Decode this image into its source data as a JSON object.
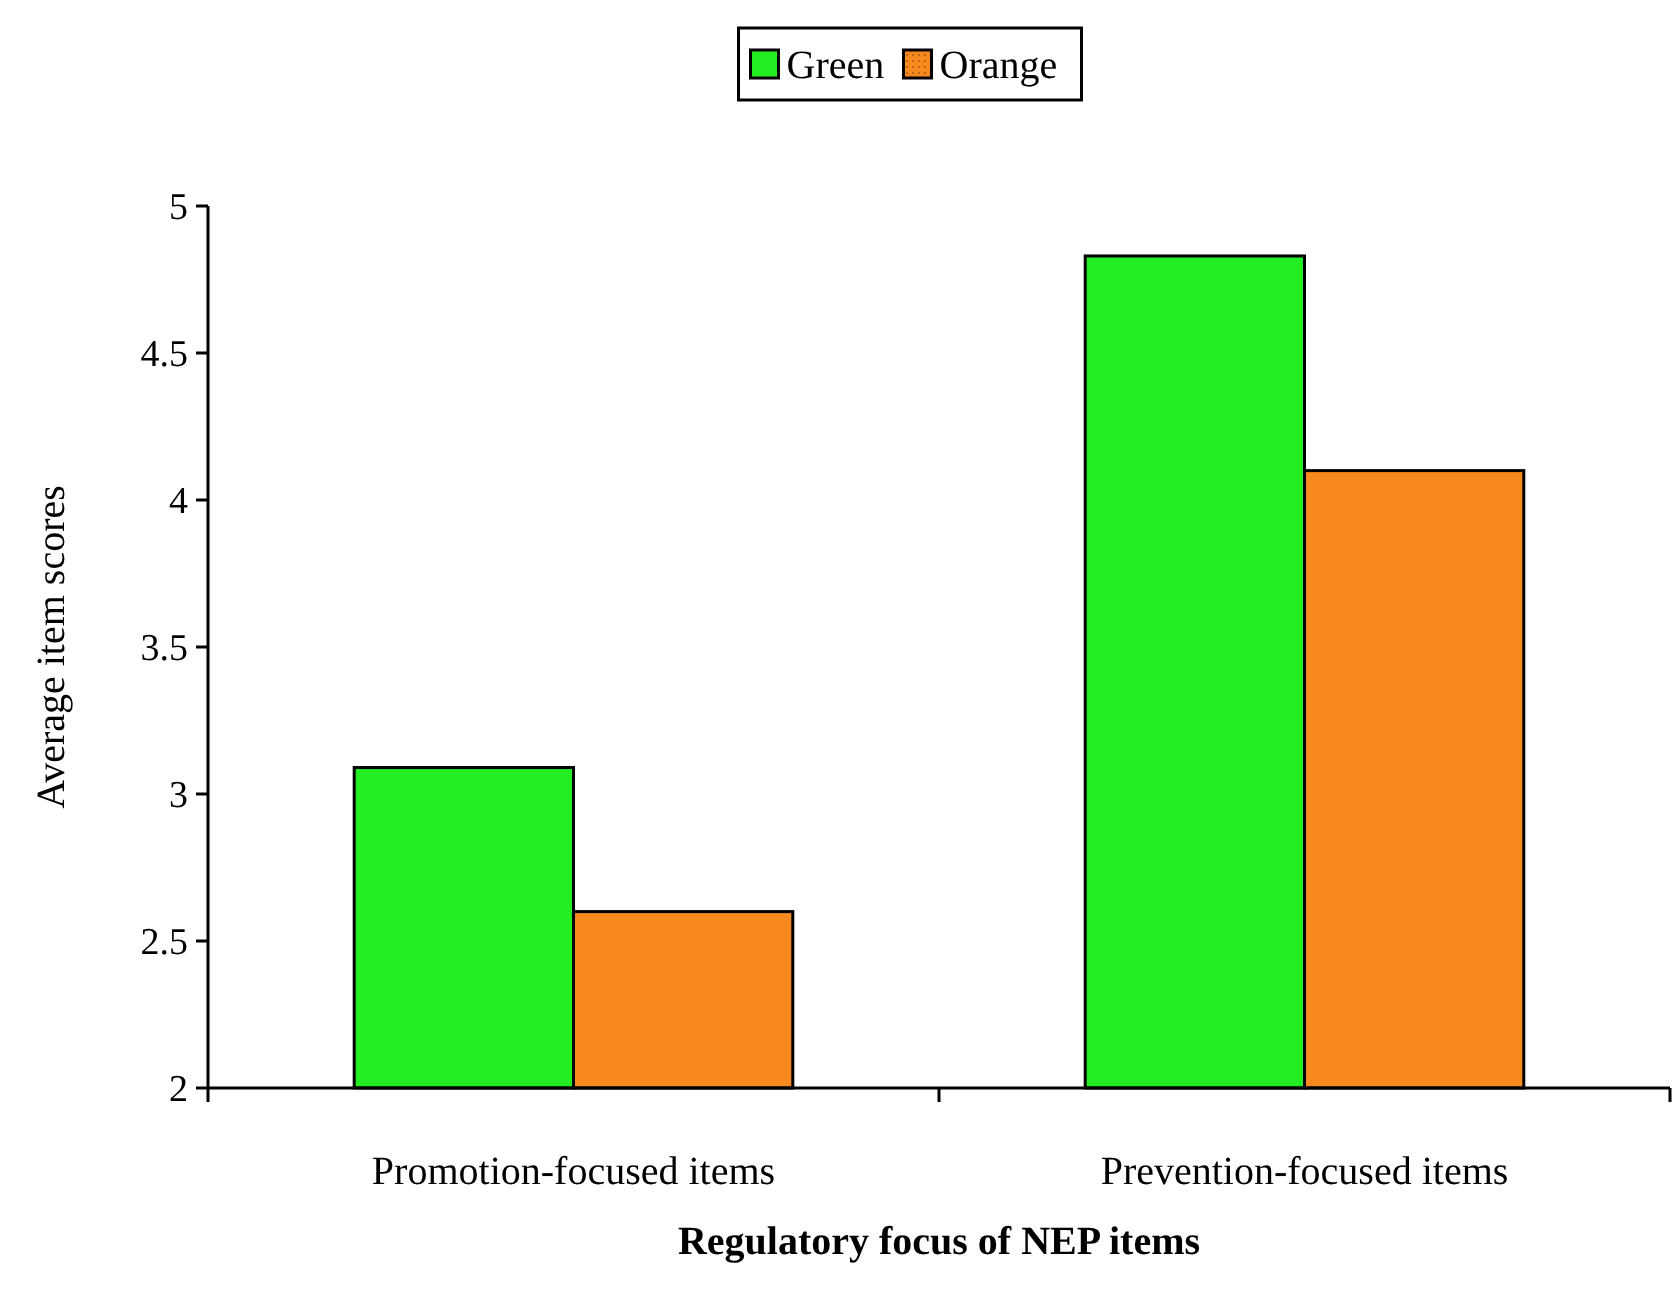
{
  "chart_data": {
    "type": "bar",
    "xlabel": "Regulatory focus of NEP items",
    "ylabel": "Average item scores",
    "categories": [
      "Promotion-focused items",
      "Prevention-focused items"
    ],
    "series": [
      {
        "name": "Green",
        "color": "#22ee22",
        "values": [
          3.09,
          4.83
        ]
      },
      {
        "name": "Orange",
        "color": "#f7891f",
        "values": [
          2.6,
          4.1
        ]
      }
    ],
    "ylim": [
      2,
      5
    ],
    "yticks": [
      2,
      2.5,
      3,
      3.5,
      4,
      4.5,
      5
    ],
    "grid": false,
    "legend": "top"
  }
}
